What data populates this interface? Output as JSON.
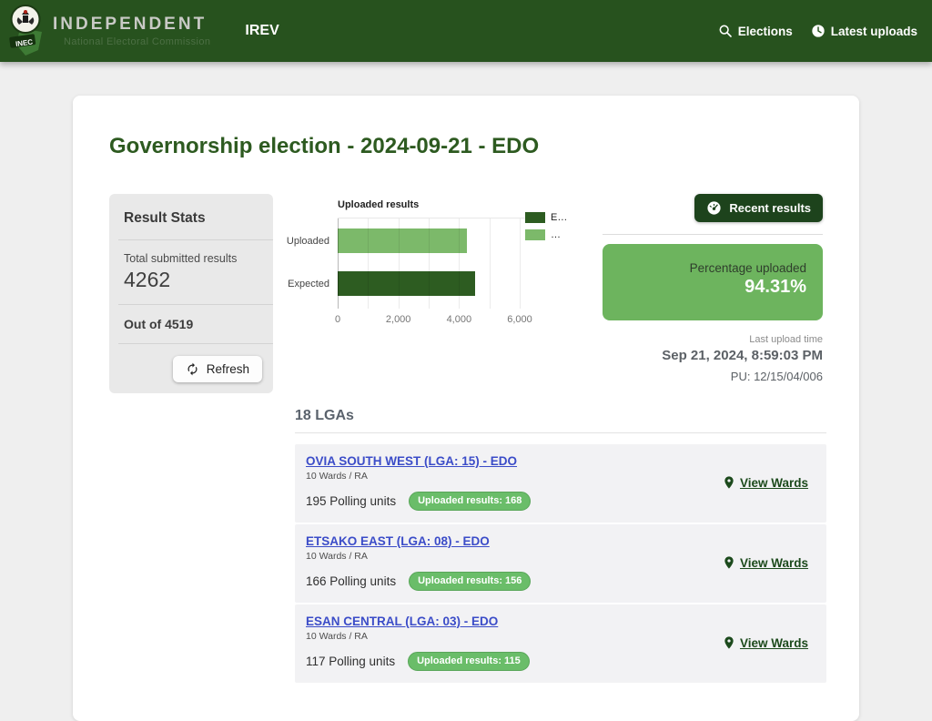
{
  "navbar": {
    "brand_title": "INDEPENDENT",
    "brand_subtitle": "National Electoral Commission",
    "logo_text": "INEC",
    "app_name": "IREV",
    "elections_label": "Elections",
    "latest_uploads_label": "Latest uploads"
  },
  "page": {
    "title": "Governorship election - 2024-09-21 - EDO"
  },
  "result_stats": {
    "heading": "Result Stats",
    "total_label": "Total submitted results",
    "total_value": "4262",
    "out_of": "Out of 4519",
    "refresh_label": "Refresh"
  },
  "chart_data": {
    "type": "bar",
    "orientation": "horizontal",
    "title": "Uploaded results",
    "categories": [
      "Uploaded",
      "Expected"
    ],
    "values": [
      4262,
      4519
    ],
    "colors": [
      "#7cb96a",
      "#2d5c21"
    ],
    "xlim": [
      0,
      6300
    ],
    "xmax": 6300,
    "grid": true,
    "legend_position": "right",
    "ticks": [
      {
        "value": 0,
        "label": "0"
      },
      {
        "value": 1000,
        "label": ""
      },
      {
        "value": 2000,
        "label": "2,000"
      },
      {
        "value": 3000,
        "label": ""
      },
      {
        "value": 4000,
        "label": "4,000"
      },
      {
        "value": 5000,
        "label": ""
      },
      {
        "value": 6000,
        "label": "6,000"
      }
    ],
    "legend": [
      {
        "label": "E…",
        "color": "#2d5c21"
      },
      {
        "label": "…",
        "color": "#7cb96a"
      }
    ]
  },
  "recent": {
    "button_label": "Recent results",
    "percentage_label": "Percentage uploaded",
    "percentage_value": "94.31%",
    "last_upload_label": "Last upload time",
    "last_upload_time": "Sep 21, 2024, 8:59:03 PM",
    "pu": "PU: 12/15/04/006"
  },
  "lgas": {
    "heading": "18 LGAs",
    "view_wards_label": "View Wards",
    "items": [
      {
        "name": "OVIA SOUTH WEST (LGA: 15) - EDO",
        "wards": "10 Wards / RA",
        "polling_units": "195 Polling units",
        "uploaded": "Uploaded results: 168"
      },
      {
        "name": "ETSAKO EAST (LGA: 08) - EDO",
        "wards": "10 Wards / RA",
        "polling_units": "166 Polling units",
        "uploaded": "Uploaded results: 156"
      },
      {
        "name": "ESAN CENTRAL (LGA: 03) - EDO",
        "wards": "10 Wards / RA",
        "polling_units": "117 Polling units",
        "uploaded": "Uploaded results: 115"
      }
    ]
  },
  "colors": {
    "navbar_green": "#27521e",
    "title_green": "#2d5a20",
    "percentage_card_green": "#6db45e",
    "badge_green": "#6abd69",
    "link_blue": "#3b4cc8",
    "view_wards_green": "#1c4a1c",
    "recent_button_green": "#1d431c"
  }
}
